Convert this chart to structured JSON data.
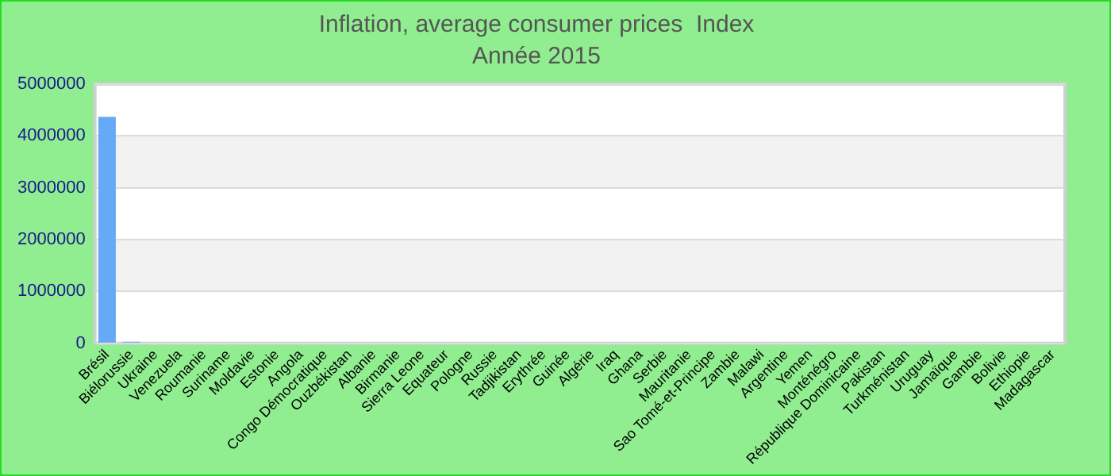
{
  "chart_data": {
    "type": "bar",
    "title": "Inflation, average consumer prices  Index",
    "subtitle": "Année 2015",
    "categories": [
      "Brésil",
      "Biélorussie",
      "Ukraine",
      "Venezuela",
      "Roumanie",
      "Suriname",
      "Moldavie",
      "Estonie",
      "Angola",
      "Congo Démocratique",
      "Ouzbékistan",
      "Albanie",
      "Birmanie",
      "Sierra Leone",
      "Equateur",
      "Pologne",
      "Russie",
      "Tadjikistan",
      "Erythrée",
      "Guinée",
      "Algérie",
      "Iraq",
      "Ghana",
      "Serbie",
      "Mauritanie",
      "Sao Tomé-et-Principe",
      "Zambie",
      "Malawi",
      "Argentine",
      "Yemen",
      "Monténégro",
      "République Dominicaine",
      "Pakistan",
      "Turkménistan",
      "Uruguay",
      "Jamaïque",
      "Gambie",
      "Bolivie",
      "Ethiopie",
      "Madagascar"
    ],
    "values": [
      4370000,
      30000,
      0,
      0,
      0,
      0,
      0,
      0,
      0,
      0,
      0,
      0,
      0,
      0,
      0,
      0,
      0,
      0,
      0,
      0,
      0,
      0,
      0,
      0,
      0,
      0,
      0,
      0,
      0,
      0,
      0,
      0,
      0,
      0,
      0,
      0,
      0,
      0,
      0,
      0
    ],
    "color": "#66aaf7",
    "ylim": [
      0,
      5000000
    ],
    "yticks": [
      0,
      1000000,
      2000000,
      3000000,
      4000000,
      5000000
    ],
    "grid": "y"
  }
}
